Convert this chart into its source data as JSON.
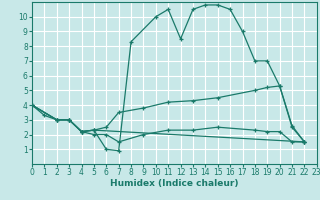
{
  "xlabel": "Humidex (Indice chaleur)",
  "bg_color": "#c8e8e8",
  "grid_color": "#ffffff",
  "line_color": "#1a7a6a",
  "xlim": [
    0,
    23
  ],
  "ylim": [
    0,
    11
  ],
  "xticks": [
    0,
    1,
    2,
    3,
    4,
    5,
    6,
    7,
    8,
    9,
    10,
    11,
    12,
    13,
    14,
    15,
    16,
    17,
    18,
    19,
    20,
    21,
    22,
    23
  ],
  "yticks": [
    1,
    2,
    3,
    4,
    5,
    6,
    7,
    8,
    9,
    10
  ],
  "lines": [
    {
      "x": [
        0,
        1,
        2,
        3,
        4,
        5,
        6,
        7,
        8,
        10,
        11,
        12,
        13,
        14,
        15,
        16,
        17,
        18,
        19,
        20,
        21,
        22
      ],
      "y": [
        4,
        3.3,
        3,
        3,
        2.2,
        2.3,
        1.0,
        0.9,
        8.3,
        10,
        10.5,
        8.5,
        10.5,
        10.8,
        10.8,
        10.5,
        9,
        7,
        7,
        5.3,
        2.6,
        1.5
      ]
    },
    {
      "x": [
        0,
        2,
        3,
        4,
        5,
        6,
        7,
        9,
        11,
        13,
        15,
        18,
        19,
        20,
        21,
        22
      ],
      "y": [
        4,
        3,
        3,
        2.2,
        2.3,
        2.5,
        3.5,
        3.8,
        4.2,
        4.3,
        4.5,
        5.0,
        5.2,
        5.3,
        2.5,
        1.5
      ]
    },
    {
      "x": [
        0,
        2,
        3,
        4,
        5,
        22
      ],
      "y": [
        4,
        3,
        3,
        2.2,
        2.3,
        1.5
      ]
    },
    {
      "x": [
        0,
        2,
        3,
        4,
        5,
        6,
        7,
        9,
        11,
        13,
        15,
        18,
        19,
        20,
        21,
        22
      ],
      "y": [
        4,
        3,
        3,
        2.2,
        2.0,
        2.0,
        1.5,
        2.0,
        2.3,
        2.3,
        2.5,
        2.3,
        2.2,
        2.2,
        1.5,
        1.5
      ]
    }
  ]
}
